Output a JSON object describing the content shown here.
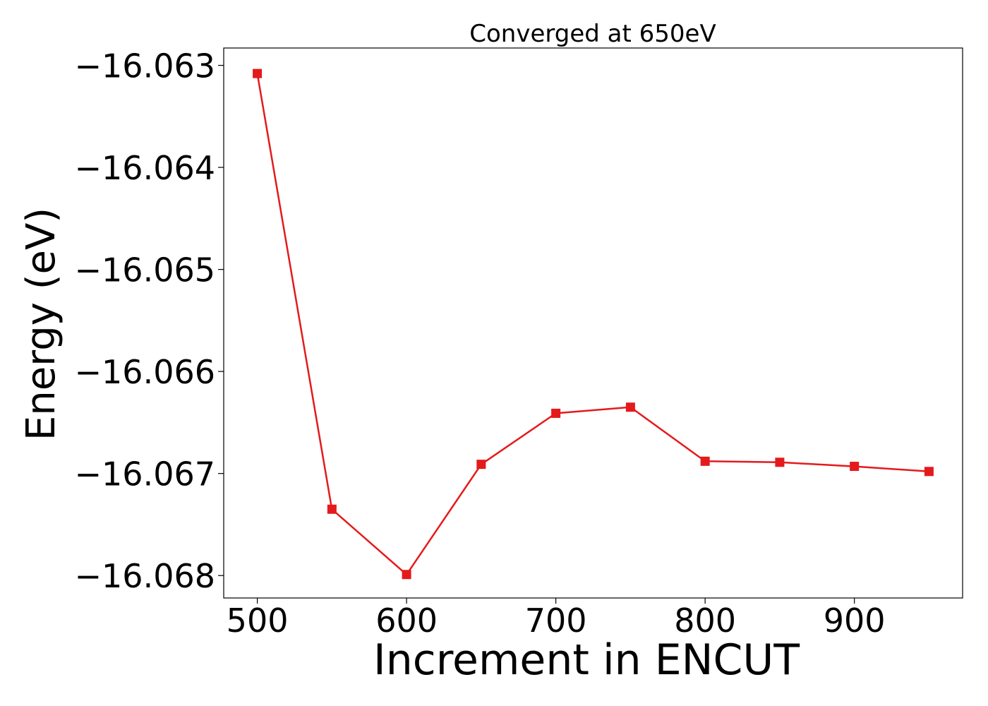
{
  "chart_data": {
    "type": "line",
    "title": "Converged at 650eV",
    "xlabel": "Increment in ENCUT",
    "ylabel": "Energy (eV)",
    "x": [
      500,
      550,
      600,
      650,
      700,
      750,
      800,
      850,
      900,
      950
    ],
    "series": [
      {
        "values": [
          -16.06308,
          -16.06735,
          -16.06799,
          -16.06691,
          -16.06641,
          -16.06635,
          -16.06688,
          -16.06689,
          -16.06693,
          -16.06698
        ],
        "color": "#e41a1c",
        "marker": "square"
      }
    ],
    "xlim": [
      477.5,
      972.5
    ],
    "ylim": [
      -16.06822,
      -16.06283
    ],
    "xticks": [
      500,
      600,
      700,
      800,
      900
    ],
    "xtick_labels": [
      "500",
      "600",
      "700",
      "800",
      "900"
    ],
    "yticks": [
      -16.063,
      -16.064,
      -16.065,
      -16.066,
      -16.067,
      -16.068
    ],
    "ytick_labels": [
      "−16.063",
      "−16.064",
      "−16.065",
      "−16.066",
      "−16.067",
      "−16.068"
    ],
    "grid": false,
    "legend": false
  }
}
